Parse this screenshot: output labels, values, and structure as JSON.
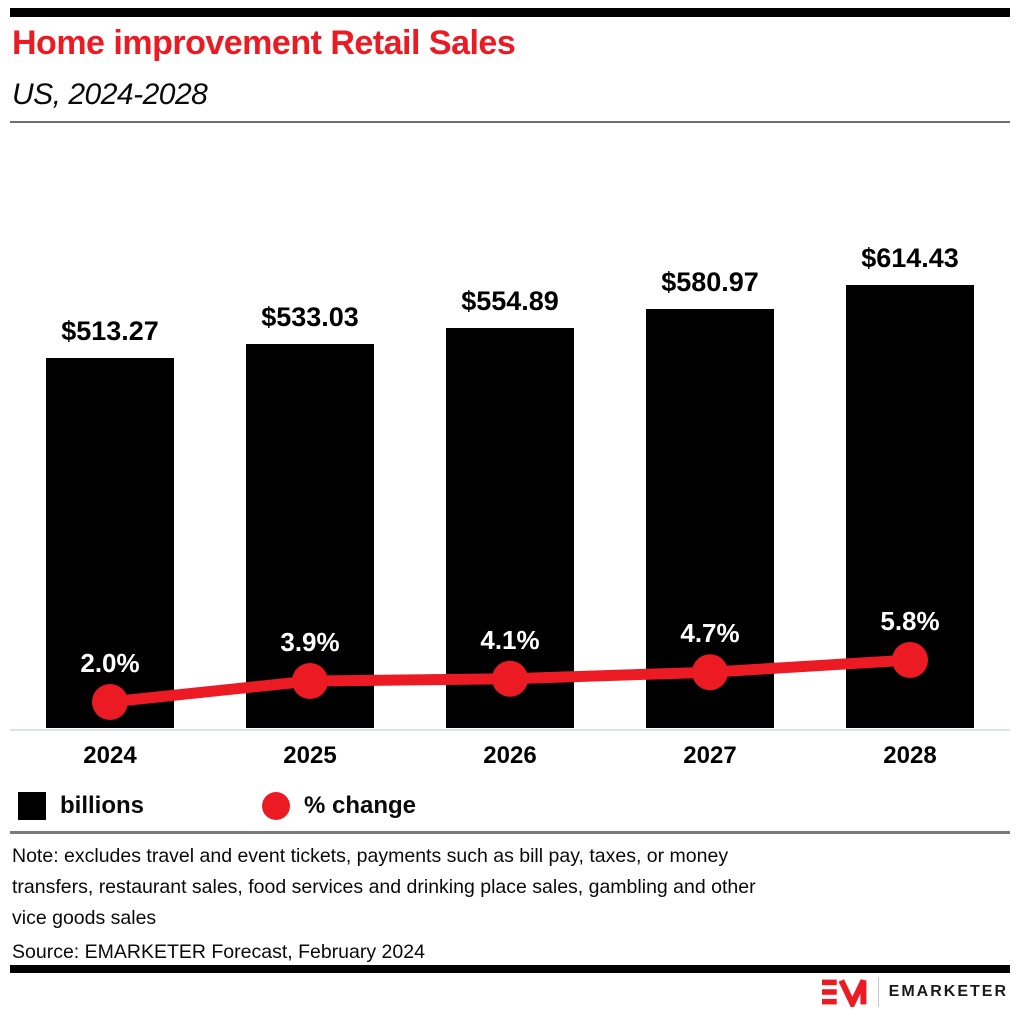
{
  "page": {
    "background": "#ffffff",
    "accent_red": "#EC1B23",
    "bar_black": "#000000",
    "axis_line_color": "#dbe0f2"
  },
  "header": {
    "title": "Home improvement Retail Sales",
    "subtitle": "US, 2024-2028"
  },
  "chart_data": {
    "type": "bar",
    "title": "Home improvement Retail Sales",
    "subtitle": "US, 2024-2028",
    "categories": [
      "2024",
      "2025",
      "2026",
      "2027",
      "2028"
    ],
    "series": [
      {
        "name": "billions",
        "type": "bar",
        "unit": "USD billions",
        "values": [
          513.27,
          533.03,
          554.89,
          580.97,
          614.43
        ],
        "labels": [
          "$513.27",
          "$533.03",
          "$554.89",
          "$580.97",
          "$614.43"
        ],
        "color": "#000000"
      },
      {
        "name": "% change",
        "type": "line",
        "unit": "percent",
        "values": [
          2.0,
          3.9,
          4.1,
          4.7,
          5.8
        ],
        "labels": [
          "2.0%",
          "3.9%",
          "4.1%",
          "4.7%",
          "5.8%"
        ],
        "color": "#EC1B23"
      }
    ],
    "xlabel": "",
    "ylabel": "",
    "ylim_bars": [
      0,
      650
    ],
    "grid": false,
    "legend_position": "bottom-left"
  },
  "legend": {
    "items": [
      {
        "label": "billions",
        "swatch": "black-square"
      },
      {
        "label": "% change",
        "swatch": "red-circle"
      }
    ]
  },
  "note": {
    "lines": [
      "Note: excludes travel and event tickets, payments such as bill pay, taxes, or money",
      "transfers, restaurant sales, food services and drinking place sales, gambling and other",
      "vice goods sales"
    ]
  },
  "source": {
    "text": "Source: EMARKETER Forecast, February 2024"
  },
  "footer": {
    "brand": "EMARKETER"
  }
}
